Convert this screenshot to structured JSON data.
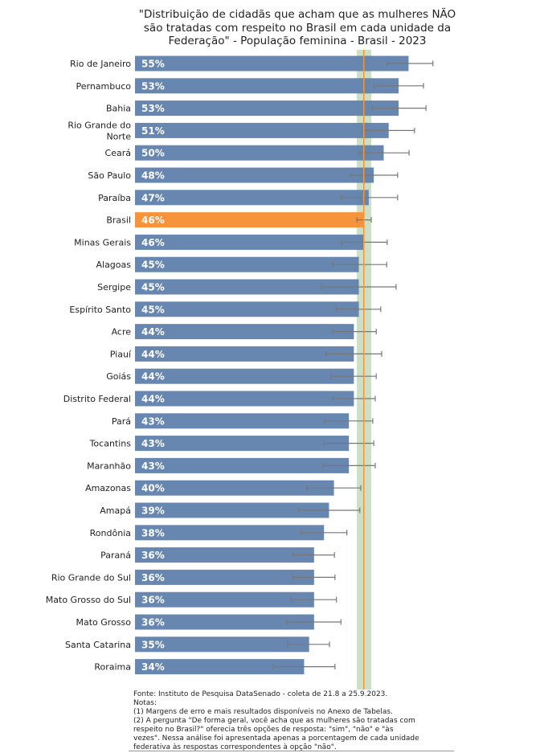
{
  "chart_data": {
    "type": "bar",
    "orientation": "horizontal",
    "title": "\"Distribuição de cidadãs que acham que as mulheres NÃO são tratadas com respeito no Brasil em cada unidade da Federação\" - População feminina - Brasil - 2023",
    "title_lines": [
      "\"Distribuição de cidadãs que acham que as mulheres NÃO",
      "são tratadas com respeito no Brasil em cada unidade da",
      "Federação\" - População feminina - Brasil - 2023"
    ],
    "categories": [
      "Rio de Janeiro",
      "Pernambuco",
      "Bahia",
      "Rio Grande do Norte",
      "Ceará",
      "São Paulo",
      "Paraíba",
      "Brasil",
      "Minas Gerais",
      "Alagoas",
      "Sergipe",
      "Espírito Santo",
      "Acre",
      "Piauí",
      "Goiás",
      "Distrito Federal",
      "Pará",
      "Tocantins",
      "Maranhão",
      "Amazonas",
      "Amapá",
      "Rondônia",
      "Paraná",
      "Rio Grande do Sul",
      "Mato Grosso do Sul",
      "Mato Grosso",
      "Santa Catarina",
      "Roraima"
    ],
    "values": [
      55,
      53,
      53,
      51,
      50,
      48,
      47,
      46,
      46,
      45,
      45,
      45,
      44,
      44,
      44,
      44,
      43,
      43,
      43,
      40,
      39,
      38,
      36,
      36,
      36,
      36,
      35,
      34
    ],
    "value_labels": [
      "55%",
      "53%",
      "53%",
      "51%",
      "50%",
      "48%",
      "47%",
      "46%",
      "46%",
      "45%",
      "45%",
      "45%",
      "44%",
      "44%",
      "44%",
      "44%",
      "43%",
      "43%",
      "43%",
      "40%",
      "39%",
      "38%",
      "36%",
      "36%",
      "36%",
      "36%",
      "35%",
      "34%"
    ],
    "error_low": [
      50.7,
      48.1,
      47.7,
      45.9,
      44.9,
      43.3,
      41.4,
      44.6,
      41.5,
      39.7,
      37.5,
      40.5,
      39.7,
      38.4,
      39.4,
      39.7,
      38.1,
      38.0,
      37.8,
      34.6,
      32.8,
      33.4,
      31.8,
      31.7,
      31.3,
      30.5,
      30.7,
      27.8
    ],
    "error_high": [
      59.9,
      58.0,
      58.5,
      56.2,
      55.1,
      52.8,
      52.8,
      47.5,
      50.7,
      50.6,
      52.5,
      49.4,
      48.5,
      49.6,
      48.5,
      48.3,
      47.8,
      48.0,
      48.3,
      45.4,
      45.2,
      42.6,
      40.1,
      40.2,
      40.5,
      41.4,
      39.1,
      40.2
    ],
    "highlight_category": "Brasil",
    "reference_line": 46,
    "reference_band": [
      44.6,
      47.5
    ],
    "xlim": [
      0,
      65
    ],
    "grid": false,
    "colors": {
      "bar": "#6383ad",
      "highlight": "#f7933b",
      "reference_line": "#f7933b",
      "band": "#b9d6b0",
      "error": "#777777"
    }
  },
  "notes": [
    "Fonte: Instituto de Pesquisa DataSenado - coleta de 21.8 a 25.9.2023.",
    "Notas:",
    "(1) Margens de erro e mais resultados disponíveis no Anexo de Tabelas.",
    "(2) A pergunta \"De forma geral, você acha que as mulheres são tratadas com",
    "respeito no Brasil?\" oferecia três opções de resposta: \"sim\", \"não\" e \"às",
    "vezes\". Nessa análise foi apresentada apenas a porcentagem de cada unidade",
    "federativa às respostas correspondentes à opção \"não\"."
  ]
}
